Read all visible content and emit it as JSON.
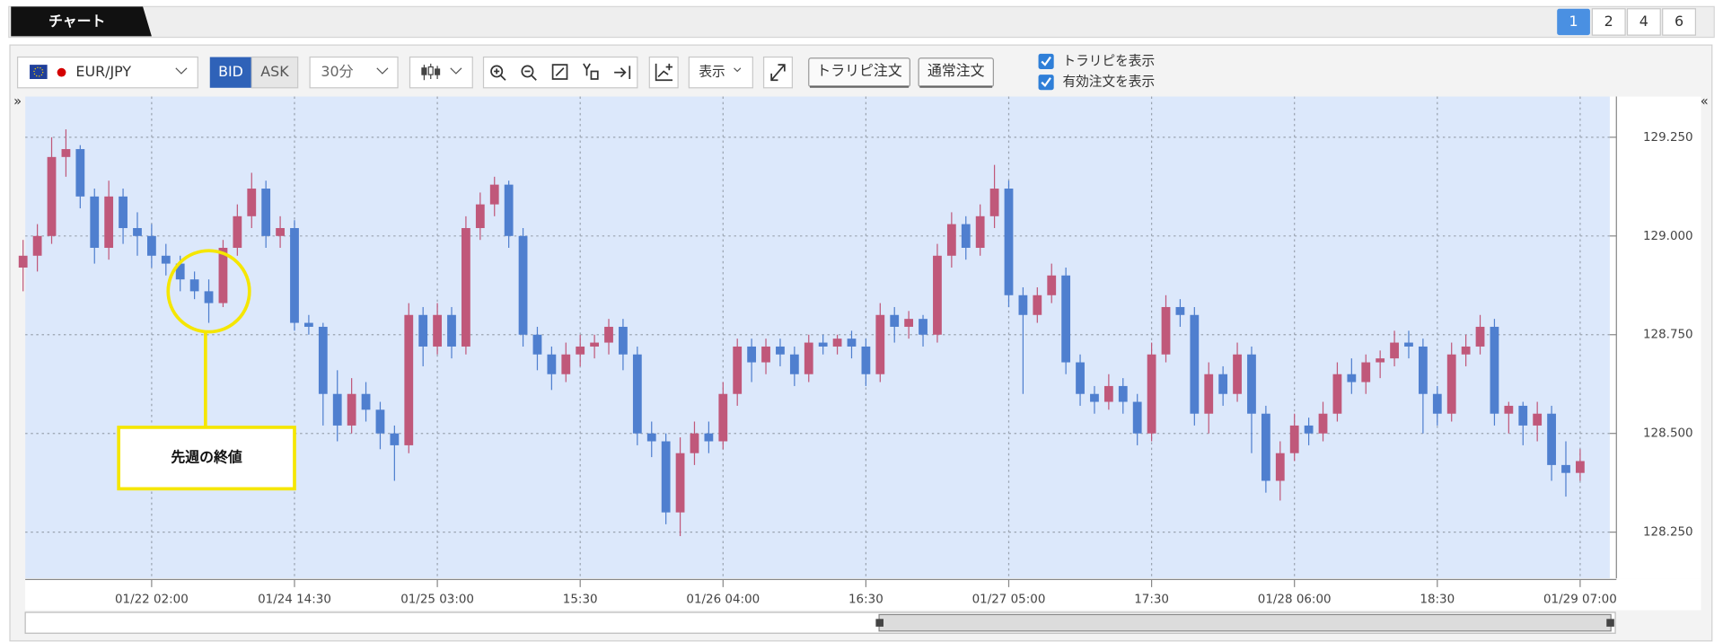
{
  "ui": {
    "tab": "チャート",
    "layout_buttons": [
      "1",
      "2",
      "4",
      "6"
    ],
    "symbol": "EUR/JPY",
    "bid": "BID",
    "ask": "ASK",
    "timeframe": "30分",
    "display": "表示",
    "trap_order": "トラリピ注文",
    "normal_order": "通常注文",
    "checkboxes": [
      "トラリピを表示",
      "有効注文を表示"
    ],
    "collapse_left": "»",
    "collapse_right": "«"
  },
  "chart_data": {
    "type": "candlestick",
    "up_color": "#c0587a",
    "down_color": "#4f7fcf",
    "grid": true,
    "xlim": [
      0,
      111
    ],
    "ylim": [
      128.133,
      129.353
    ],
    "yticks": [
      {
        "value": 128.25,
        "label": "128.250"
      },
      {
        "value": 128.5,
        "label": "128.500"
      },
      {
        "value": 128.75,
        "label": "128.750"
      },
      {
        "value": 129.0,
        "label": "129.000"
      },
      {
        "value": 129.25,
        "label": "129.250"
      }
    ],
    "xticks": [
      {
        "value": 9,
        "label": "01/22 02:00"
      },
      {
        "value": 19,
        "label": "01/24 14:30"
      },
      {
        "value": 29,
        "label": "01/25 03:00"
      },
      {
        "value": 39,
        "label": "15:30"
      },
      {
        "value": 49,
        "label": "01/26 04:00"
      },
      {
        "value": 59,
        "label": "16:30"
      },
      {
        "value": 69,
        "label": "01/27 05:00"
      },
      {
        "value": 79,
        "label": "17:30"
      },
      {
        "value": 89,
        "label": "01/28 06:00"
      },
      {
        "value": 99,
        "label": "18:30"
      },
      {
        "value": 109,
        "label": "01/29 07:00"
      }
    ],
    "annotations": [
      {
        "text": "先週の終値",
        "x": 13,
        "y": 128.86
      }
    ],
    "ohlc": [
      [
        128.92,
        128.99,
        128.86,
        128.95
      ],
      [
        128.95,
        129.03,
        128.91,
        129.0
      ],
      [
        129.0,
        129.25,
        128.98,
        129.2
      ],
      [
        129.2,
        129.27,
        129.15,
        129.22
      ],
      [
        129.22,
        129.23,
        129.07,
        129.1
      ],
      [
        129.1,
        129.12,
        128.93,
        128.97
      ],
      [
        128.97,
        129.14,
        128.94,
        129.1
      ],
      [
        129.1,
        129.12,
        128.98,
        129.02
      ],
      [
        129.02,
        129.06,
        128.95,
        129.0
      ],
      [
        129.0,
        129.03,
        128.92,
        128.95
      ],
      [
        128.95,
        128.98,
        128.9,
        128.93
      ],
      [
        128.93,
        128.95,
        128.86,
        128.89
      ],
      [
        128.89,
        128.91,
        128.84,
        128.86
      ],
      [
        128.86,
        128.89,
        128.78,
        128.83
      ],
      [
        128.83,
        128.99,
        128.82,
        128.97
      ],
      [
        128.97,
        129.08,
        128.95,
        129.05
      ],
      [
        129.05,
        129.16,
        129.02,
        129.12
      ],
      [
        129.12,
        129.14,
        128.97,
        129.0
      ],
      [
        129.0,
        129.05,
        128.97,
        129.02
      ],
      [
        129.02,
        129.04,
        128.76,
        128.78
      ],
      [
        128.78,
        128.8,
        128.75,
        128.77
      ],
      [
        128.77,
        128.78,
        128.52,
        128.6
      ],
      [
        128.6,
        128.66,
        128.48,
        128.52
      ],
      [
        128.52,
        128.64,
        128.5,
        128.6
      ],
      [
        128.6,
        128.63,
        128.53,
        128.56
      ],
      [
        128.56,
        128.58,
        128.46,
        128.5
      ],
      [
        128.5,
        128.52,
        128.38,
        128.47
      ],
      [
        128.47,
        128.83,
        128.45,
        128.8
      ],
      [
        128.8,
        128.82,
        128.67,
        128.72
      ],
      [
        128.72,
        128.83,
        128.7,
        128.8
      ],
      [
        128.8,
        128.82,
        128.69,
        128.72
      ],
      [
        128.72,
        129.05,
        128.7,
        129.02
      ],
      [
        129.02,
        129.11,
        128.99,
        129.08
      ],
      [
        129.08,
        129.15,
        129.05,
        129.13
      ],
      [
        129.13,
        129.14,
        128.97,
        129.0
      ],
      [
        129.0,
        129.02,
        128.72,
        128.75
      ],
      [
        128.75,
        128.77,
        128.66,
        128.7
      ],
      [
        128.7,
        128.72,
        128.61,
        128.65
      ],
      [
        128.65,
        128.73,
        128.63,
        128.7
      ],
      [
        128.7,
        128.75,
        128.67,
        128.72
      ],
      [
        128.72,
        128.75,
        128.69,
        128.73
      ],
      [
        128.73,
        128.79,
        128.7,
        128.77
      ],
      [
        128.77,
        128.79,
        128.66,
        128.7
      ],
      [
        128.7,
        128.72,
        128.47,
        128.5
      ],
      [
        128.5,
        128.53,
        128.44,
        128.48
      ],
      [
        128.48,
        128.5,
        128.27,
        128.3
      ],
      [
        128.3,
        128.49,
        128.24,
        128.45
      ],
      [
        128.45,
        128.53,
        128.42,
        128.5
      ],
      [
        128.5,
        128.53,
        128.45,
        128.48
      ],
      [
        128.48,
        128.63,
        128.46,
        128.6
      ],
      [
        128.6,
        128.74,
        128.57,
        128.72
      ],
      [
        128.72,
        128.74,
        128.63,
        128.68
      ],
      [
        128.68,
        128.74,
        128.65,
        128.72
      ],
      [
        128.72,
        128.74,
        128.67,
        128.7
      ],
      [
        128.7,
        128.72,
        128.62,
        128.65
      ],
      [
        128.65,
        128.75,
        128.63,
        128.73
      ],
      [
        128.73,
        128.75,
        128.7,
        128.72
      ],
      [
        128.72,
        128.75,
        128.7,
        128.74
      ],
      [
        128.74,
        128.76,
        128.69,
        128.72
      ],
      [
        128.72,
        128.74,
        128.62,
        128.65
      ],
      [
        128.65,
        128.83,
        128.63,
        128.8
      ],
      [
        128.8,
        128.82,
        128.73,
        128.77
      ],
      [
        128.77,
        128.81,
        128.74,
        128.79
      ],
      [
        128.79,
        128.8,
        128.72,
        128.75
      ],
      [
        128.75,
        128.98,
        128.73,
        128.95
      ],
      [
        128.95,
        129.06,
        128.92,
        129.03
      ],
      [
        129.03,
        129.05,
        128.94,
        128.97
      ],
      [
        128.97,
        129.08,
        128.95,
        129.05
      ],
      [
        129.05,
        129.18,
        129.02,
        129.12
      ],
      [
        129.12,
        129.14,
        128.82,
        128.85
      ],
      [
        128.85,
        128.87,
        128.6,
        128.8
      ],
      [
        128.8,
        128.87,
        128.78,
        128.85
      ],
      [
        128.85,
        128.93,
        128.83,
        128.9
      ],
      [
        128.9,
        128.92,
        128.65,
        128.68
      ],
      [
        128.68,
        128.7,
        128.57,
        128.6
      ],
      [
        128.6,
        128.62,
        128.55,
        128.58
      ],
      [
        128.58,
        128.65,
        128.56,
        128.62
      ],
      [
        128.62,
        128.64,
        128.55,
        128.58
      ],
      [
        128.58,
        128.6,
        128.47,
        128.5
      ],
      [
        128.5,
        128.73,
        128.48,
        128.7
      ],
      [
        128.7,
        128.85,
        128.68,
        128.82
      ],
      [
        128.82,
        128.84,
        128.77,
        128.8
      ],
      [
        128.8,
        128.82,
        128.52,
        128.55
      ],
      [
        128.55,
        128.68,
        128.5,
        128.65
      ],
      [
        128.65,
        128.67,
        128.57,
        128.6
      ],
      [
        128.6,
        128.73,
        128.58,
        128.7
      ],
      [
        128.7,
        128.72,
        128.45,
        128.55
      ],
      [
        128.55,
        128.57,
        128.35,
        128.38
      ],
      [
        128.38,
        128.48,
        128.33,
        128.45
      ],
      [
        128.45,
        128.55,
        128.43,
        128.52
      ],
      [
        128.52,
        128.54,
        128.47,
        128.5
      ],
      [
        128.5,
        128.58,
        128.48,
        128.55
      ],
      [
        128.55,
        128.68,
        128.53,
        128.65
      ],
      [
        128.65,
        128.69,
        128.6,
        128.63
      ],
      [
        128.63,
        128.7,
        128.6,
        128.68
      ],
      [
        128.68,
        128.71,
        128.64,
        128.69
      ],
      [
        128.69,
        128.76,
        128.67,
        128.73
      ],
      [
        128.73,
        128.76,
        128.69,
        128.72
      ],
      [
        128.72,
        128.74,
        128.5,
        128.6
      ],
      [
        128.6,
        128.62,
        128.52,
        128.55
      ],
      [
        128.55,
        128.73,
        128.53,
        128.7
      ],
      [
        128.7,
        128.75,
        128.67,
        128.72
      ],
      [
        128.72,
        128.8,
        128.7,
        128.77
      ],
      [
        128.77,
        128.79,
        128.52,
        128.55
      ],
      [
        128.55,
        128.58,
        128.5,
        128.57
      ],
      [
        128.57,
        128.58,
        128.47,
        128.52
      ],
      [
        128.52,
        128.58,
        128.48,
        128.55
      ],
      [
        128.55,
        128.57,
        128.38,
        128.42
      ],
      [
        128.42,
        128.48,
        128.34,
        128.4
      ],
      [
        128.4,
        128.46,
        128.38,
        128.43
      ]
    ]
  }
}
